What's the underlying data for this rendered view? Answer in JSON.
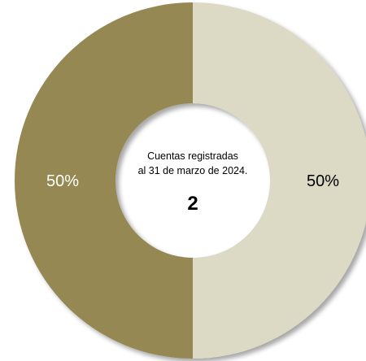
{
  "chart_data": {
    "type": "pie",
    "donut": true,
    "slices": [
      {
        "value": 50,
        "label": "50%",
        "color": "#dcd9c4",
        "label_color": "#000000"
      },
      {
        "value": 50,
        "label": "50%",
        "color": "#958852",
        "label_color": "#ffffff"
      }
    ],
    "center": {
      "line1": "Cuentas registradas",
      "line2": "al 31 de marzo de 2024.",
      "value": "2"
    },
    "shadow": true
  }
}
